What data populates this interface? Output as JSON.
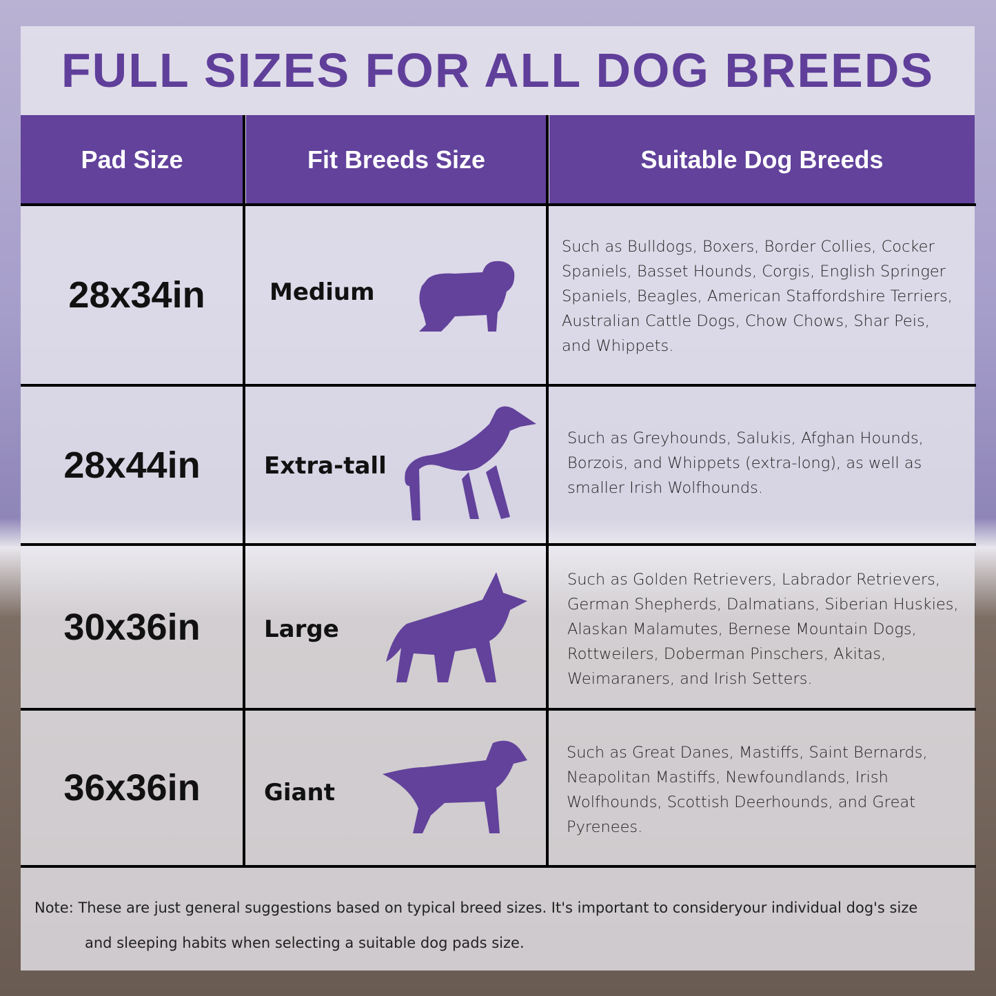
{
  "title": "FULL SIZES FOR ALL DOG BREEDS",
  "accent_color": "#62429b",
  "headers": [
    "Pad Size",
    "Fit Breeds Size",
    "Suitable Dog Breeds"
  ],
  "rows": [
    {
      "pad": "28x34in",
      "fit": "Medium",
      "icon": "bulldog-silhouette-icon",
      "breeds": [
        "Such as Bulldogs, Boxers, Border Collies, Cocker",
        "Spaniels, Basset Hounds, Corgis, English Springer",
        "Spaniels, Beagles, American Staffordshire Terriers,",
        "Australian Cattle Dogs, Chow Chows, Shar Peis,",
        "and Whippets."
      ]
    },
    {
      "pad": "28x44in",
      "fit": "Extra-tall",
      "icon": "greyhound-silhouette-icon",
      "breeds": [
        "Such as Greyhounds, Salukis, Afghan Hounds,",
        "Borzois, and Whippets (extra-long), as well as",
        "smaller Irish Wolfhounds."
      ]
    },
    {
      "pad": "30x36in",
      "fit": "Large",
      "icon": "shepherd-silhouette-icon",
      "breeds": [
        "Such as Golden Retrievers, Labrador Retrievers,",
        "German Shepherds, Dalmatians, Siberian Huskies,",
        "Alaskan Malamutes, Bernese Mountain Dogs,",
        "Rottweilers, Doberman Pinschers, Akitas,",
        "Weimaraners, and Irish Setters."
      ]
    },
    {
      "pad": "36x36in",
      "fit": "Giant",
      "icon": "retriever-silhouette-icon",
      "breeds": [
        "Such as Great Danes, Mastiffs, Saint Bernards,",
        "Neapolitan Mastiffs, Newfoundlands, Irish",
        " Wolfhounds, Scottish Deerhounds, and Great",
        "Pyrenees."
      ]
    }
  ],
  "note": [
    "Note: These are just general suggestions based on typical breed sizes. It's important to consideryour individual dog's size",
    "and sleeping habits when selecting a suitable dog pads size."
  ]
}
